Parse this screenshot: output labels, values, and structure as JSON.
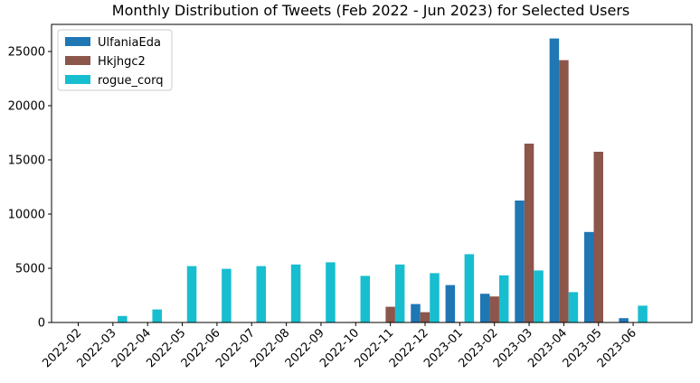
{
  "chart_data": {
    "type": "bar",
    "title": "Monthly Distribution of Tweets (Feb 2022 - Jun 2023) for Selected Users",
    "xlabel": "",
    "ylabel": "",
    "categories": [
      "2022-02",
      "2022-03",
      "2022-04",
      "2022-05",
      "2022-06",
      "2022-07",
      "2022-08",
      "2022-09",
      "2022-10",
      "2022-11",
      "2022-12",
      "2023-01",
      "2023-02",
      "2023-03",
      "2023-04",
      "2023-05",
      "2023-06"
    ],
    "ylim": [
      0,
      27500
    ],
    "yticks": [
      "0",
      "5000",
      "10000",
      "15000",
      "20000",
      "25000"
    ],
    "legend_position": "top-left",
    "grid": false,
    "series": [
      {
        "name": "UlfaniaEda",
        "color": "#1f77b4",
        "values": [
          0,
          0,
          0,
          0,
          0,
          0,
          0,
          0,
          0,
          0,
          1700,
          3450,
          2650,
          11250,
          26200,
          8350,
          400
        ]
      },
      {
        "name": "Hkjhgc2",
        "color": "#8c564b",
        "values": [
          0,
          0,
          0,
          0,
          0,
          0,
          0,
          0,
          50,
          1450,
          950,
          50,
          2400,
          16500,
          24200,
          15750,
          0
        ]
      },
      {
        "name": "rogue_corq",
        "color": "#17becf",
        "values": [
          0,
          600,
          1200,
          5200,
          4950,
          5200,
          5350,
          5550,
          4300,
          5350,
          4550,
          6300,
          4350,
          4800,
          2800,
          0,
          1550
        ]
      }
    ]
  }
}
